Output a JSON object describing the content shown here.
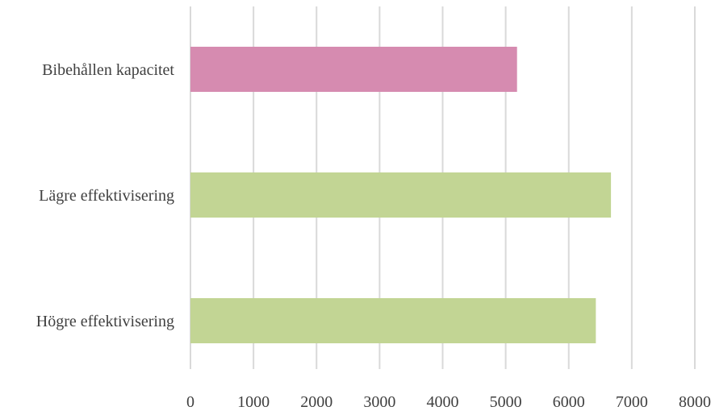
{
  "chart_data": {
    "type": "bar",
    "orientation": "horizontal",
    "title": "",
    "xlabel": "",
    "ylabel": "",
    "categories": [
      "Bibehållen kapacitet",
      "Lägre effektivisering",
      "Högre effektivisering"
    ],
    "values": [
      5180,
      6670,
      6430
    ],
    "bar_colors": [
      "#d68bb0",
      "#c2d594",
      "#c2d594"
    ],
    "xlim": [
      0,
      8000
    ],
    "x_ticks": [
      "0",
      "1000",
      "2000",
      "3000",
      "4000",
      "5000",
      "6000",
      "7000",
      "8000"
    ],
    "grid": "vertical",
    "legend": "none"
  }
}
